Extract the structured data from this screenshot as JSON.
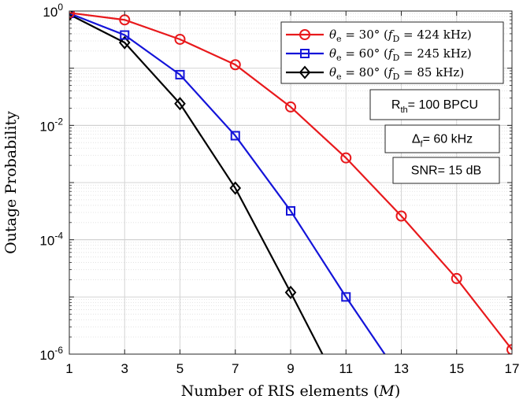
{
  "chart_data": {
    "type": "line",
    "xlabel": "Number of RIS elements",
    "xlabel_var": "M",
    "ylabel": "Outage Probability",
    "xlim": [
      1,
      17
    ],
    "ylim": [
      1e-06,
      1
    ],
    "yscale": "log",
    "grid": true,
    "minor_grid": true,
    "legend_position": "top-right",
    "x_ticks": [
      1,
      3,
      5,
      7,
      9,
      11,
      13,
      15,
      17
    ],
    "y_ticks": [
      {
        "base": "10",
        "exp": "0",
        "value": 1
      },
      {
        "base": "10",
        "exp": "-2",
        "value": 0.01
      },
      {
        "base": "10",
        "exp": "-4",
        "value": 0.0001
      },
      {
        "base": "10",
        "exp": "-6",
        "value": 1e-06
      }
    ],
    "series": [
      {
        "name": "θe = 30° (fD = 424 kHz)",
        "legend": {
          "angle": "30°",
          "freq": "424 kHz"
        },
        "color": "#e8191c",
        "marker": "circle",
        "x": [
          1,
          3,
          5,
          7,
          9,
          11,
          13,
          15,
          17
        ],
        "y": [
          0.93,
          0.7,
          0.32,
          0.115,
          0.021,
          0.0027,
          0.00026,
          2.1e-05,
          1.2e-06
        ]
      },
      {
        "name": "θe = 60° (fD = 245 kHz)",
        "legend": {
          "angle": "60°",
          "freq": "245 kHz"
        },
        "color": "#1414d9",
        "marker": "square",
        "x": [
          1,
          3,
          5,
          7,
          9,
          11,
          12.4
        ],
        "y": [
          0.91,
          0.38,
          0.077,
          0.0066,
          0.00032,
          1e-05,
          1e-06
        ],
        "markers_count": 6
      },
      {
        "name": "θe = 80° (fD = 85 kHz)",
        "legend": {
          "angle": "80°",
          "freq": "85 kHz"
        },
        "color": "#000000",
        "marker": "diamond",
        "x": [
          1,
          3,
          5,
          7,
          9,
          10.15
        ],
        "y": [
          0.87,
          0.28,
          0.024,
          0.0008,
          1.2e-05,
          1e-06
        ],
        "markers_count": 5
      }
    ],
    "annotations": [
      {
        "main": "R",
        "sub": "th",
        "rest": "= 100 BPCU"
      },
      {
        "main": "Δ",
        "sub": "f",
        "rest": "= 60 kHz"
      },
      {
        "main": "SNR= 15 dB",
        "sub": "",
        "rest": ""
      }
    ]
  }
}
